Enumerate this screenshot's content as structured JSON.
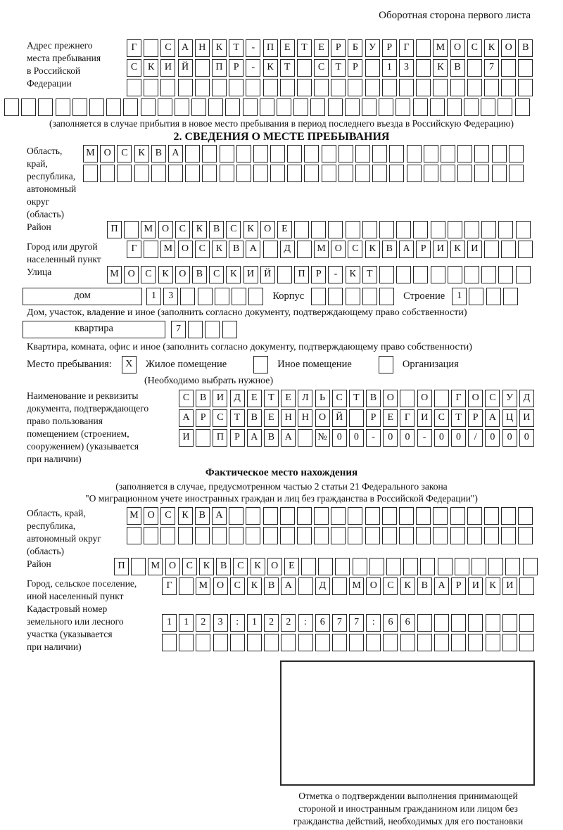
{
  "header": {
    "note": "Оборотная сторона первого листа"
  },
  "prev_address": {
    "label": "Адрес прежнего\nместа пребывания\nв Российской\nФедерации",
    "rows": [
      {
        "text": "Г САНКТ-ПЕТЕРБУРГ МОСКОВ",
        "len": 24
      },
      {
        "text": "СКИЙ ПР-КТ СТР 13 КВ 7",
        "len": 24
      },
      {
        "text": "",
        "len": 24
      }
    ],
    "full_row": {
      "text": "",
      "len": 31
    },
    "note": "(заполняется в случае прибытия в новое место пребывания в период последнего въезда в Российскую Федерацию)"
  },
  "section2": {
    "title": "2. СВЕДЕНИЯ О МЕСТЕ ПРЕБЫВАНИЯ",
    "oblast": {
      "label": "Область, край,\nреспублика,\nавтономный\nокруг (область)",
      "rows": [
        {
          "text": "МОСКВА",
          "len": 26
        },
        {
          "text": "",
          "len": 26
        }
      ]
    },
    "rayon": {
      "label": "Район",
      "row": {
        "text": "П МОСКВСКОЕ",
        "len": 25
      }
    },
    "gorod": {
      "label": "Город или другой\nнаселенный пункт",
      "row": {
        "text": "Г МОСКВА Д МОСКВАРИКИ",
        "len": 24
      }
    },
    "ulitsa": {
      "label": "Улица",
      "row": {
        "text": "МОСКОВСКИЙ ПР-КТ",
        "len": 25
      }
    },
    "dom": {
      "box_label": "дом",
      "cells": {
        "text": "13",
        "len": 7
      },
      "korpus_label": "Корпус",
      "korpus_cells": {
        "text": "",
        "len": 5
      },
      "stroenie_label": "Строение",
      "stroenie_cells": {
        "text": "1",
        "len": 4
      },
      "note": "Дом, участок, владение и иное (заполнить согласно документу, подтверждающему право собственности)"
    },
    "kvartira": {
      "box_label": "квартира",
      "cells": {
        "text": "7",
        "len": 4
      },
      "note": "Квартира, комната, офис и иное (заполнить согласно документу, подтверждающему право собственности)"
    },
    "mesto": {
      "label": "Место пребывания:",
      "options": [
        {
          "label": "Жилое помещение",
          "value": "X"
        },
        {
          "label": "Иное помещение",
          "value": ""
        },
        {
          "label": "Организация",
          "value": ""
        }
      ],
      "note": "(Необходимо выбрать нужное)"
    },
    "doc": {
      "label": "Наименование и реквизиты\nдокумента, подтверждающего\nправо пользования\nпомещением (строением,\nсооружением) (указывается\nпри наличии)",
      "rows": [
        {
          "text": "СВИДЕТЕЛЬСТВО О ГОСУД",
          "len": 21
        },
        {
          "text": "АРСТВЕННОЙ РЕГИСТРАЦИ",
          "len": 21
        },
        {
          "text": "И ПРАВА №00-00-00/000",
          "len": 21
        }
      ]
    }
  },
  "factual": {
    "title": "Фактическое место нахождения",
    "note1": "(заполняется в случае, предусмотренном частью 2 статьи 21 Федерального закона",
    "note2": "\"О миграционном учете иностранных граждан и лиц без гражданства в Российской Федерации\")",
    "oblast": {
      "label": "Область, край,\nреспублика,\nавтономный округ\n(область)",
      "rows": [
        {
          "text": "МОСКВА",
          "len": 24
        },
        {
          "text": "",
          "len": 24
        }
      ]
    },
    "rayon": {
      "label": "Район",
      "row": {
        "text": "П МОСКВСКОЕ",
        "len": 25
      }
    },
    "gorod": {
      "label": "Город, сельское поселение,\nиной населенный пункт",
      "row": {
        "text": "Г МОСКВА Д МОСКВАРИКИ",
        "len": 22
      }
    },
    "kadastr": {
      "label": "Кадастровый номер\nземельного или лесного\nучастка (указывается\nпри наличии)",
      "rows": [
        {
          "text": "1123:122:677:66",
          "len": 22
        },
        {
          "text": "",
          "len": 22
        }
      ]
    },
    "stamp_note": "Отметка о подтверждении выполнения принимающей\nстороной и иностранным гражданином или лицом без\nгражданства действий, необходимых для его постановки\nна учет по месту пребывания"
  }
}
